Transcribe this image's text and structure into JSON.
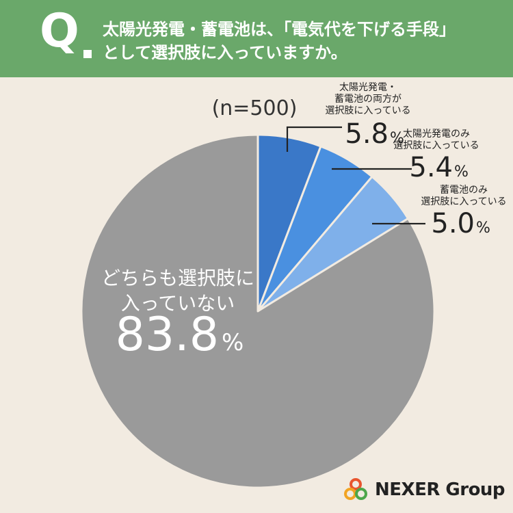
{
  "header": {
    "q_letter": "Q",
    "question_line1": "太陽光発電・蓄電池は、「電気代を下げる手段」",
    "question_line2": "として選択肢に入っていますか。"
  },
  "chart_data": {
    "type": "pie",
    "sample_size_label": "(n=500)",
    "slices": [
      {
        "label_lines": [
          "太陽光発電・",
          "蓄電池の両方が",
          "選択肢に入っている"
        ],
        "value": 5.8,
        "value_text": "5.8",
        "color": "#3a78c8"
      },
      {
        "label_lines": [
          "太陽光発電のみ",
          "選択肢に入っている"
        ],
        "value": 5.4,
        "value_text": "5.4",
        "color": "#4a90e0"
      },
      {
        "label_lines": [
          "蓄電池のみ",
          "選択肢に入っている"
        ],
        "value": 5.0,
        "value_text": "5.0",
        "color": "#7fb0ea"
      },
      {
        "label_lines": [
          "どちらも選択肢に",
          "入っていない"
        ],
        "value": 83.8,
        "value_text": "83.8",
        "color": "#9a9a9a"
      }
    ],
    "unit": "%"
  },
  "logo": {
    "text": "NEXER Group"
  },
  "colors": {
    "header_bg": "#6aa86a",
    "background": "#f2ebe1",
    "leader_line": "#222222"
  }
}
